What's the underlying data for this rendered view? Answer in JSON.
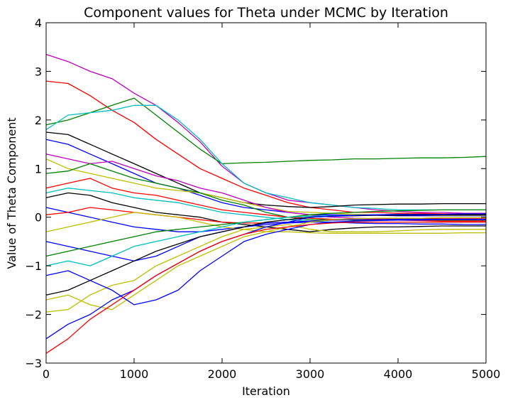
{
  "chart_data": {
    "type": "line",
    "title": "Component values for Theta under MCMC by Iteration",
    "xlabel": "Iteration",
    "ylabel": "Value of Theta Component",
    "xlim": [
      0,
      5000
    ],
    "ylim": [
      -3,
      4
    ],
    "xticks": [
      0,
      1000,
      2000,
      3000,
      4000,
      5000
    ],
    "yticks": [
      -3,
      -2,
      -1,
      0,
      1,
      2,
      3,
      4
    ],
    "xtick_labels": [
      "0",
      "1000",
      "2000",
      "3000",
      "4000",
      "5000"
    ],
    "ytick_labels": [
      "−3",
      "−2",
      "−1",
      "0",
      "1",
      "2",
      "3",
      "4"
    ],
    "grid": false,
    "legend": "none",
    "x": [
      0,
      250,
      500,
      750,
      1000,
      1250,
      1500,
      1750,
      2000,
      2250,
      2500,
      2750,
      3000,
      3250,
      3500,
      3750,
      4000,
      4250,
      4500,
      4750,
      5000
    ],
    "series": [
      {
        "color": "#bf00bf",
        "values": [
          3.35,
          3.2,
          3.0,
          2.85,
          2.55,
          2.3,
          1.95,
          1.55,
          1.05,
          0.7,
          0.5,
          0.35,
          0.3,
          0.25,
          0.2,
          0.15,
          0.12,
          0.1,
          0.1,
          0.08,
          0.08
        ]
      },
      {
        "color": "#ff0000",
        "values": [
          2.8,
          2.75,
          2.5,
          2.2,
          1.95,
          1.6,
          1.3,
          1.0,
          0.8,
          0.6,
          0.45,
          0.3,
          0.2,
          0.15,
          0.1,
          0.1,
          0.08,
          0.08,
          0.07,
          0.07,
          0.07
        ]
      },
      {
        "color": "#008000",
        "values": [
          1.9,
          2.0,
          2.15,
          2.3,
          2.45,
          2.1,
          1.75,
          1.4,
          1.1,
          1.12,
          1.13,
          1.15,
          1.17,
          1.18,
          1.2,
          1.2,
          1.21,
          1.22,
          1.22,
          1.23,
          1.25
        ]
      },
      {
        "color": "#00bfbf",
        "values": [
          1.8,
          2.1,
          2.15,
          2.2,
          2.3,
          2.3,
          2.0,
          1.6,
          1.1,
          0.7,
          0.5,
          0.4,
          0.3,
          0.25,
          0.2,
          0.18,
          0.15,
          0.15,
          0.15,
          0.15,
          0.15
        ]
      },
      {
        "color": "#000000",
        "values": [
          1.75,
          1.7,
          1.5,
          1.3,
          1.1,
          0.9,
          0.7,
          0.5,
          0.4,
          0.3,
          0.25,
          0.22,
          0.2,
          0.22,
          0.25,
          0.26,
          0.27,
          0.27,
          0.28,
          0.28,
          0.28
        ]
      },
      {
        "color": "#0000ff",
        "values": [
          1.6,
          1.5,
          1.3,
          1.1,
          0.9,
          0.7,
          0.6,
          0.45,
          0.3,
          0.2,
          0.15,
          0.1,
          0.05,
          0.05,
          0.04,
          0.04,
          0.03,
          0.03,
          0.03,
          0.03,
          0.03
        ]
      },
      {
        "color": "#bfbf00",
        "values": [
          1.2,
          1.0,
          0.9,
          0.8,
          0.7,
          0.6,
          0.55,
          0.5,
          0.4,
          0.3,
          0.2,
          0.12,
          0.1,
          0.08,
          0.06,
          0.05,
          0.05,
          0.05,
          0.04,
          0.04,
          0.04
        ]
      },
      {
        "color": "#bf00bf",
        "values": [
          1.3,
          1.2,
          1.1,
          1.15,
          1.0,
          0.85,
          0.75,
          0.6,
          0.5,
          0.35,
          0.2,
          0.1,
          0.05,
          0.0,
          -0.02,
          -0.03,
          -0.04,
          -0.05,
          -0.05,
          -0.05,
          -0.05
        ]
      },
      {
        "color": "#008000",
        "values": [
          0.9,
          0.95,
          1.1,
          0.95,
          0.8,
          0.7,
          0.6,
          0.5,
          0.35,
          0.25,
          0.1,
          0.0,
          -0.05,
          -0.05,
          -0.06,
          -0.06,
          -0.06,
          -0.06,
          -0.06,
          -0.07,
          -0.07
        ]
      },
      {
        "color": "#ff0000",
        "values": [
          0.6,
          0.7,
          0.8,
          0.6,
          0.5,
          0.45,
          0.35,
          0.25,
          0.15,
          0.1,
          0.05,
          0.0,
          -0.02,
          -0.04,
          -0.05,
          -0.05,
          -0.06,
          -0.07,
          -0.08,
          -0.08,
          -0.08
        ]
      },
      {
        "color": "#00bfbf",
        "values": [
          0.5,
          0.6,
          0.55,
          0.5,
          0.4,
          0.35,
          0.3,
          0.2,
          0.1,
          0.05,
          0.0,
          -0.05,
          -0.08,
          -0.1,
          -0.1,
          -0.1,
          -0.1,
          -0.1,
          -0.1,
          -0.1,
          -0.1
        ]
      },
      {
        "color": "#000000",
        "values": [
          0.4,
          0.5,
          0.45,
          0.3,
          0.2,
          0.1,
          0.05,
          0.0,
          -0.1,
          -0.15,
          -0.2,
          -0.25,
          -0.3,
          -0.25,
          -0.22,
          -0.2,
          -0.2,
          -0.19,
          -0.18,
          -0.18,
          -0.18
        ]
      },
      {
        "color": "#0000ff",
        "values": [
          0.2,
          0.1,
          0.0,
          -0.1,
          -0.2,
          -0.25,
          -0.3,
          -0.3,
          -0.25,
          -0.2,
          -0.15,
          -0.12,
          -0.1,
          -0.1,
          -0.12,
          -0.13,
          -0.13,
          -0.14,
          -0.14,
          -0.15,
          -0.15
        ]
      },
      {
        "color": "#ff0000",
        "values": [
          0.05,
          0.1,
          0.2,
          0.15,
          0.1,
          0.05,
          0.0,
          -0.05,
          -0.1,
          -0.12,
          -0.12,
          -0.1,
          -0.08,
          -0.06,
          -0.05,
          -0.04,
          -0.03,
          -0.03,
          -0.02,
          -0.02,
          -0.02
        ]
      },
      {
        "color": "#bfbf00",
        "values": [
          -0.3,
          -0.2,
          -0.1,
          0.0,
          0.1,
          0.05,
          0.0,
          -0.1,
          -0.2,
          -0.25,
          -0.3,
          -0.3,
          -0.32,
          -0.33,
          -0.33,
          -0.33,
          -0.33,
          -0.33,
          -0.33,
          -0.32,
          -0.32
        ]
      },
      {
        "color": "#0000ff",
        "values": [
          -0.5,
          -0.6,
          -0.7,
          -0.8,
          -0.9,
          -0.8,
          -0.6,
          -0.4,
          -0.3,
          -0.2,
          -0.12,
          -0.1,
          -0.08,
          -0.06,
          -0.05,
          -0.05,
          -0.04,
          -0.04,
          -0.04,
          -0.04,
          -0.04
        ]
      },
      {
        "color": "#008000",
        "values": [
          -0.8,
          -0.7,
          -0.6,
          -0.5,
          -0.4,
          -0.3,
          -0.25,
          -0.2,
          -0.15,
          -0.1,
          -0.05,
          0.0,
          0.05,
          0.08,
          0.1,
          0.12,
          0.13,
          0.14,
          0.15,
          0.15,
          0.15
        ]
      },
      {
        "color": "#00bfbf",
        "values": [
          -1.0,
          -0.9,
          -1.0,
          -0.8,
          -0.6,
          -0.5,
          -0.4,
          -0.3,
          -0.2,
          -0.1,
          -0.05,
          0.0,
          0.02,
          0.03,
          0.04,
          0.05,
          0.05,
          0.05,
          0.05,
          0.06,
          0.06
        ]
      },
      {
        "color": "#000000",
        "values": [
          -1.6,
          -1.5,
          -1.3,
          -1.1,
          -0.9,
          -0.7,
          -0.55,
          -0.4,
          -0.3,
          -0.2,
          -0.1,
          -0.05,
          0.0,
          0.02,
          0.03,
          0.04,
          0.04,
          0.05,
          0.05,
          0.05,
          0.05
        ]
      },
      {
        "color": "#bfbf00",
        "values": [
          -1.7,
          -1.6,
          -1.8,
          -1.9,
          -1.6,
          -1.3,
          -1.0,
          -0.8,
          -0.6,
          -0.4,
          -0.3,
          -0.2,
          -0.1,
          -0.05,
          -0.03,
          -0.02,
          -0.02,
          -0.02,
          -0.01,
          -0.01,
          -0.01
        ]
      },
      {
        "color": "#bfbf00",
        "values": [
          -1.95,
          -1.9,
          -1.6,
          -1.4,
          -1.3,
          -1.0,
          -0.8,
          -0.6,
          -0.4,
          -0.25,
          -0.2,
          -0.15,
          -0.25,
          -0.3,
          -0.3,
          -0.3,
          -0.28,
          -0.26,
          -0.25,
          -0.25,
          -0.25
        ]
      },
      {
        "color": "#0000ff",
        "values": [
          -1.2,
          -1.1,
          -1.3,
          -1.5,
          -1.8,
          -1.7,
          -1.5,
          -1.1,
          -0.8,
          -0.5,
          -0.35,
          -0.25,
          -0.15,
          -0.1,
          -0.08,
          -0.07,
          -0.06,
          -0.06,
          -0.05,
          -0.05,
          -0.05
        ]
      },
      {
        "color": "#0000ff",
        "values": [
          -2.5,
          -2.2,
          -2.0,
          -1.7,
          -1.5,
          -1.2,
          -0.95,
          -0.7,
          -0.5,
          -0.35,
          -0.2,
          -0.1,
          0.0,
          0.02,
          0.04,
          0.05,
          0.06,
          0.06,
          0.06,
          0.07,
          0.07
        ]
      },
      {
        "color": "#ff0000",
        "values": [
          -2.8,
          -2.5,
          -2.1,
          -1.8,
          -1.5,
          -1.2,
          -0.95,
          -0.7,
          -0.5,
          -0.35,
          -0.25,
          -0.2,
          -0.15,
          -0.12,
          -0.1,
          -0.1,
          -0.1,
          -0.1,
          -0.1,
          -0.1,
          -0.1
        ]
      }
    ]
  }
}
